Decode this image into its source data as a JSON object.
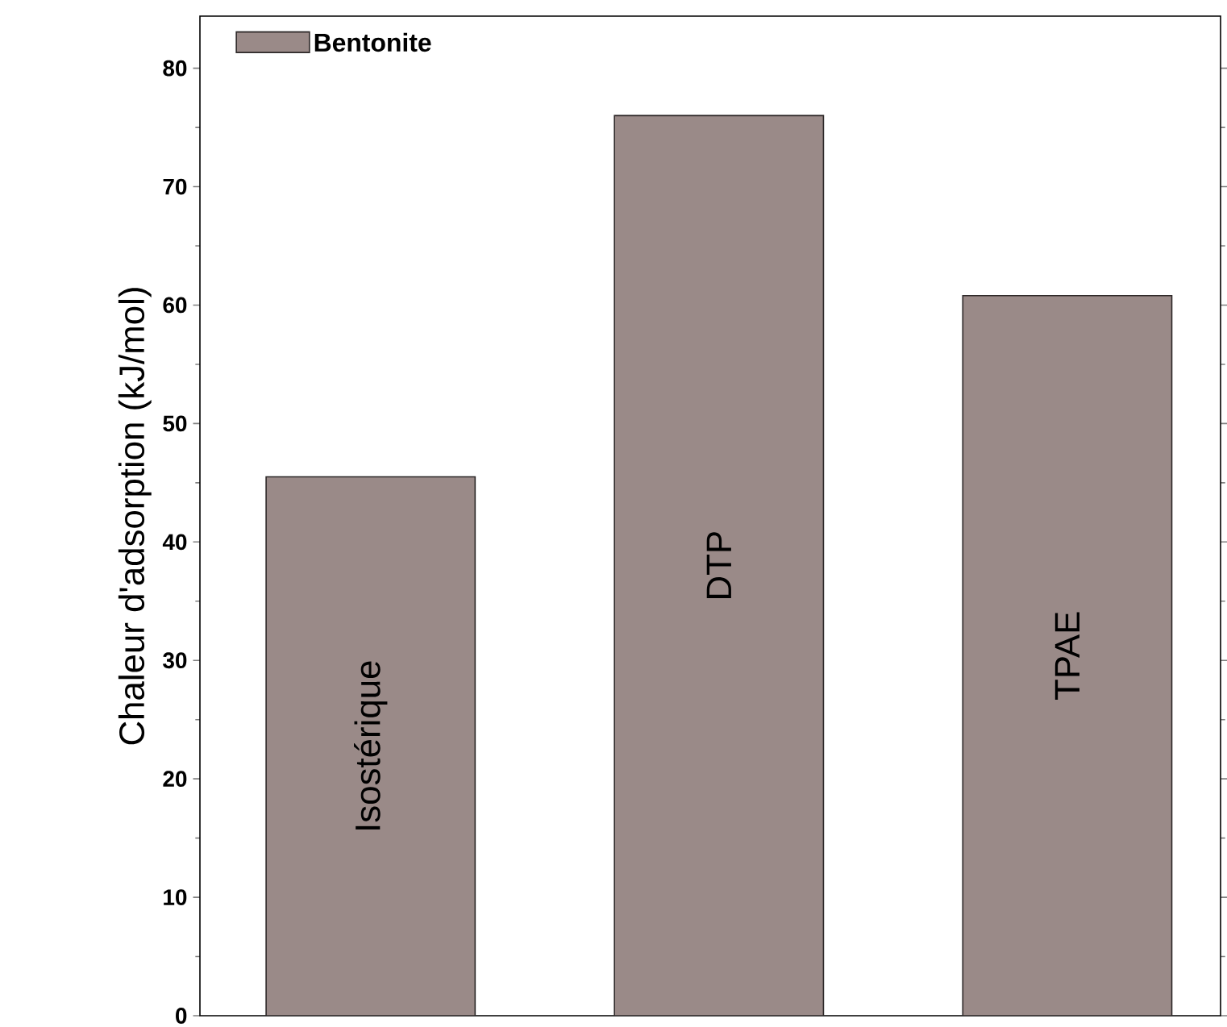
{
  "chart_data": {
    "type": "bar",
    "ylabel": "Chaleur d'adsorption (kJ/mol)",
    "categories": [
      "Isostérique",
      "DTP",
      "TPAE"
    ],
    "series": [
      {
        "name": "Bentonite",
        "color": "#9a8a88",
        "values": [
          45.5,
          76,
          60.8
        ]
      }
    ],
    "ylim": [
      0,
      84.4
    ],
    "yticks": [
      0,
      10,
      20,
      30,
      40,
      50,
      60,
      70,
      80
    ],
    "legend": "top left",
    "grid": false
  }
}
